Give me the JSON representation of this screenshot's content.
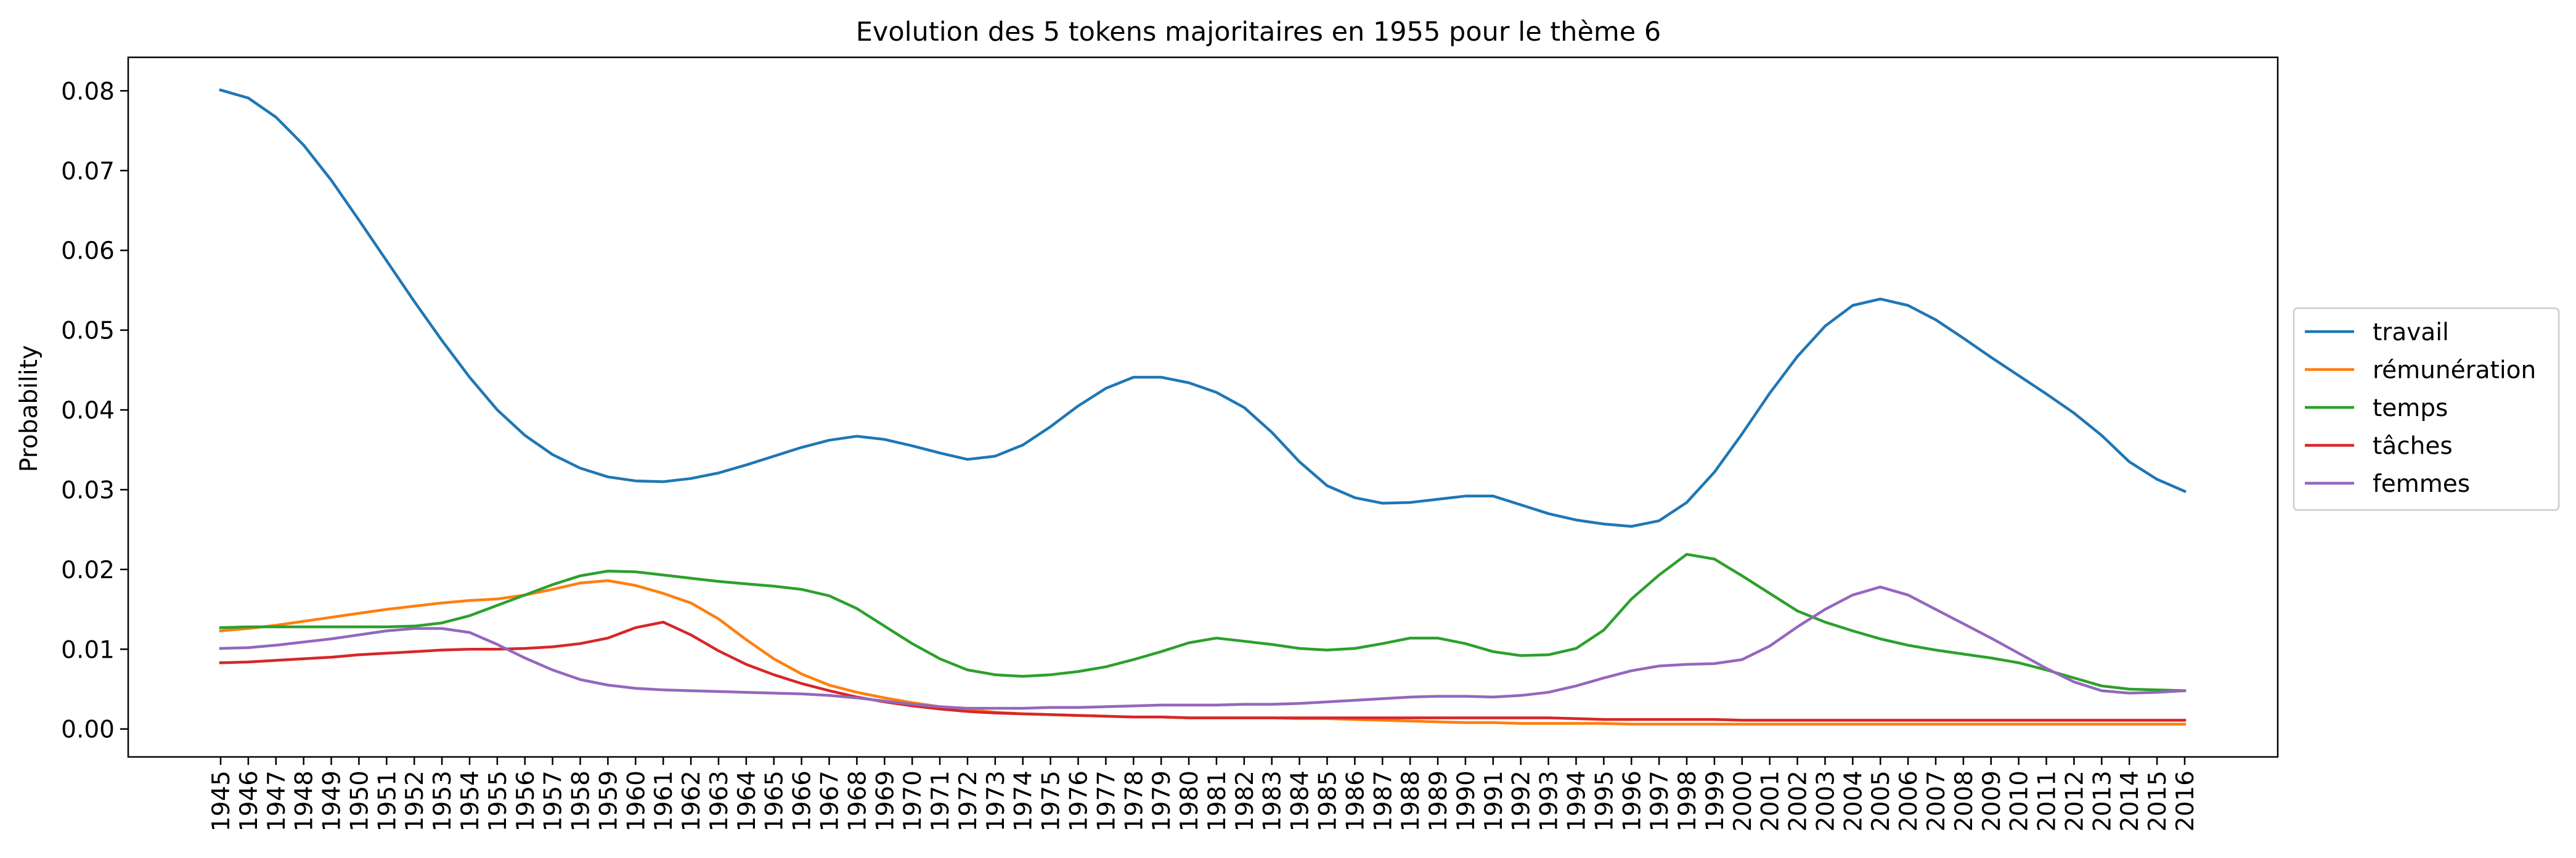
{
  "chart_data": {
    "type": "line",
    "title": "Evolution des 5 tokens majoritaires en 1955 pour le thème 6",
    "xlabel": "",
    "ylabel": "Probability",
    "ylim": [
      -0.0035,
      0.0842
    ],
    "yticks": [
      0.0,
      0.01,
      0.02,
      0.03,
      0.04,
      0.05,
      0.06,
      0.07,
      0.08
    ],
    "ytick_labels": [
      "0.00",
      "0.01",
      "0.02",
      "0.03",
      "0.04",
      "0.05",
      "0.06",
      "0.07",
      "0.08"
    ],
    "grid": false,
    "legend_position": "center-right, outside plot area",
    "x": [
      "1945",
      "1946",
      "1947",
      "1948",
      "1949",
      "1950",
      "1951",
      "1952",
      "1953",
      "1954",
      "1955",
      "1956",
      "1957",
      "1958",
      "1959",
      "1960",
      "1961",
      "1962",
      "1963",
      "1964",
      "1965",
      "1966",
      "1967",
      "1968",
      "1969",
      "1970",
      "1971",
      "1972",
      "1973",
      "1974",
      "1975",
      "1976",
      "1977",
      "1978",
      "1979",
      "1980",
      "1981",
      "1982",
      "1983",
      "1984",
      "1985",
      "1986",
      "1987",
      "1988",
      "1989",
      "1990",
      "1991",
      "1992",
      "1993",
      "1994",
      "1995",
      "1996",
      "1997",
      "1998",
      "1999",
      "2000",
      "2001",
      "2002",
      "2003",
      "2004",
      "2005",
      "2006",
      "2007",
      "2008",
      "2009",
      "2010",
      "2011",
      "2012",
      "2013",
      "2014",
      "2015",
      "2016"
    ],
    "series": [
      {
        "name": "travail",
        "color": "#1f77b4",
        "values": [
          0.0801,
          0.0791,
          0.0767,
          0.0732,
          0.0688,
          0.0638,
          0.0587,
          0.0536,
          0.0487,
          0.0441,
          0.04,
          0.0368,
          0.0344,
          0.0327,
          0.0316,
          0.0311,
          0.031,
          0.0314,
          0.0321,
          0.0331,
          0.0342,
          0.0353,
          0.0362,
          0.0367,
          0.0363,
          0.0355,
          0.0346,
          0.0338,
          0.0342,
          0.0356,
          0.0379,
          0.0405,
          0.0427,
          0.0441,
          0.0441,
          0.0434,
          0.0422,
          0.0403,
          0.0372,
          0.0335,
          0.0305,
          0.029,
          0.0283,
          0.0284,
          0.0288,
          0.0292,
          0.0292,
          0.0281,
          0.027,
          0.0262,
          0.0257,
          0.0254,
          0.0261,
          0.0284,
          0.0322,
          0.037,
          0.0421,
          0.0467,
          0.0505,
          0.0531,
          0.0539,
          0.0531,
          0.0513,
          0.049,
          0.0466,
          0.0443,
          0.042,
          0.0396,
          0.0368,
          0.0335,
          0.0313,
          0.0298
        ]
      },
      {
        "name": "rémunération",
        "color": "#ff7f0e",
        "values": [
          0.0123,
          0.0126,
          0.013,
          0.0135,
          0.014,
          0.0145,
          0.015,
          0.0154,
          0.0158,
          0.0161,
          0.0163,
          0.0168,
          0.0175,
          0.0183,
          0.0186,
          0.018,
          0.017,
          0.0158,
          0.0138,
          0.0112,
          0.0088,
          0.0069,
          0.0055,
          0.0046,
          0.0039,
          0.0033,
          0.0028,
          0.0024,
          0.0021,
          0.0019,
          0.0018,
          0.0017,
          0.0016,
          0.0015,
          0.0015,
          0.0014,
          0.0014,
          0.0014,
          0.0014,
          0.0013,
          0.0013,
          0.0012,
          0.0011,
          0.001,
          0.0009,
          0.0008,
          0.0008,
          0.0007,
          0.0007,
          0.0007,
          0.0007,
          0.0006,
          0.0006,
          0.0006,
          0.0006,
          0.0006,
          0.0006,
          0.0006,
          0.0006,
          0.0006,
          0.0006,
          0.0006,
          0.0006,
          0.0006,
          0.0006,
          0.0006,
          0.0006,
          0.0006,
          0.0006,
          0.0006,
          0.0006,
          0.0006
        ]
      },
      {
        "name": "temps",
        "color": "#2ca02c",
        "values": [
          0.0127,
          0.0128,
          0.0128,
          0.0128,
          0.0128,
          0.0128,
          0.0128,
          0.0129,
          0.0133,
          0.0142,
          0.0155,
          0.0168,
          0.0181,
          0.0192,
          0.0198,
          0.0197,
          0.0193,
          0.0189,
          0.0185,
          0.0182,
          0.0179,
          0.0175,
          0.0167,
          0.0151,
          0.0129,
          0.0107,
          0.0088,
          0.0074,
          0.0068,
          0.0066,
          0.0068,
          0.0072,
          0.0078,
          0.0087,
          0.0097,
          0.0108,
          0.0114,
          0.011,
          0.0106,
          0.0101,
          0.0099,
          0.0101,
          0.0107,
          0.0114,
          0.0114,
          0.0107,
          0.0097,
          0.0092,
          0.0093,
          0.0101,
          0.0124,
          0.0163,
          0.0193,
          0.0219,
          0.0213,
          0.0192,
          0.017,
          0.0148,
          0.0134,
          0.0123,
          0.0113,
          0.0105,
          0.0099,
          0.0094,
          0.0089,
          0.0083,
          0.0074,
          0.0064,
          0.0054,
          0.005,
          0.0049,
          0.0048
        ]
      },
      {
        "name": "tâches",
        "color": "#d62728",
        "values": [
          0.0083,
          0.0084,
          0.0086,
          0.0088,
          0.009,
          0.0093,
          0.0095,
          0.0097,
          0.0099,
          0.01,
          0.01,
          0.0101,
          0.0103,
          0.0107,
          0.0114,
          0.0127,
          0.0134,
          0.0118,
          0.0098,
          0.0081,
          0.0068,
          0.0057,
          0.0048,
          0.004,
          0.0034,
          0.0029,
          0.0025,
          0.0022,
          0.002,
          0.0019,
          0.0018,
          0.0017,
          0.0016,
          0.0015,
          0.0015,
          0.0014,
          0.0014,
          0.0014,
          0.0014,
          0.0014,
          0.0014,
          0.0014,
          0.0014,
          0.0014,
          0.0014,
          0.0014,
          0.0014,
          0.0014,
          0.0014,
          0.0013,
          0.0012,
          0.0012,
          0.0012,
          0.0012,
          0.0012,
          0.0011,
          0.0011,
          0.0011,
          0.0011,
          0.0011,
          0.0011,
          0.0011,
          0.0011,
          0.0011,
          0.0011,
          0.0011,
          0.0011,
          0.0011,
          0.0011,
          0.0011,
          0.0011,
          0.0011
        ]
      },
      {
        "name": "femmes",
        "color": "#9467bd",
        "values": [
          0.0101,
          0.0102,
          0.0105,
          0.0109,
          0.0113,
          0.0118,
          0.0123,
          0.0126,
          0.0126,
          0.0121,
          0.0106,
          0.0089,
          0.0074,
          0.0062,
          0.0055,
          0.0051,
          0.0049,
          0.0048,
          0.0047,
          0.0046,
          0.0045,
          0.0044,
          0.0042,
          0.0039,
          0.0035,
          0.0031,
          0.0028,
          0.0026,
          0.0026,
          0.0026,
          0.0027,
          0.0027,
          0.0028,
          0.0029,
          0.003,
          0.003,
          0.003,
          0.0031,
          0.0031,
          0.0032,
          0.0034,
          0.0036,
          0.0038,
          0.004,
          0.0041,
          0.0041,
          0.004,
          0.0042,
          0.0046,
          0.0054,
          0.0064,
          0.0073,
          0.0079,
          0.0081,
          0.0082,
          0.0087,
          0.0104,
          0.0128,
          0.015,
          0.0168,
          0.0178,
          0.0168,
          0.015,
          0.0132,
          0.0114,
          0.0095,
          0.0076,
          0.0059,
          0.0048,
          0.0045,
          0.0046,
          0.0048
        ]
      }
    ]
  }
}
